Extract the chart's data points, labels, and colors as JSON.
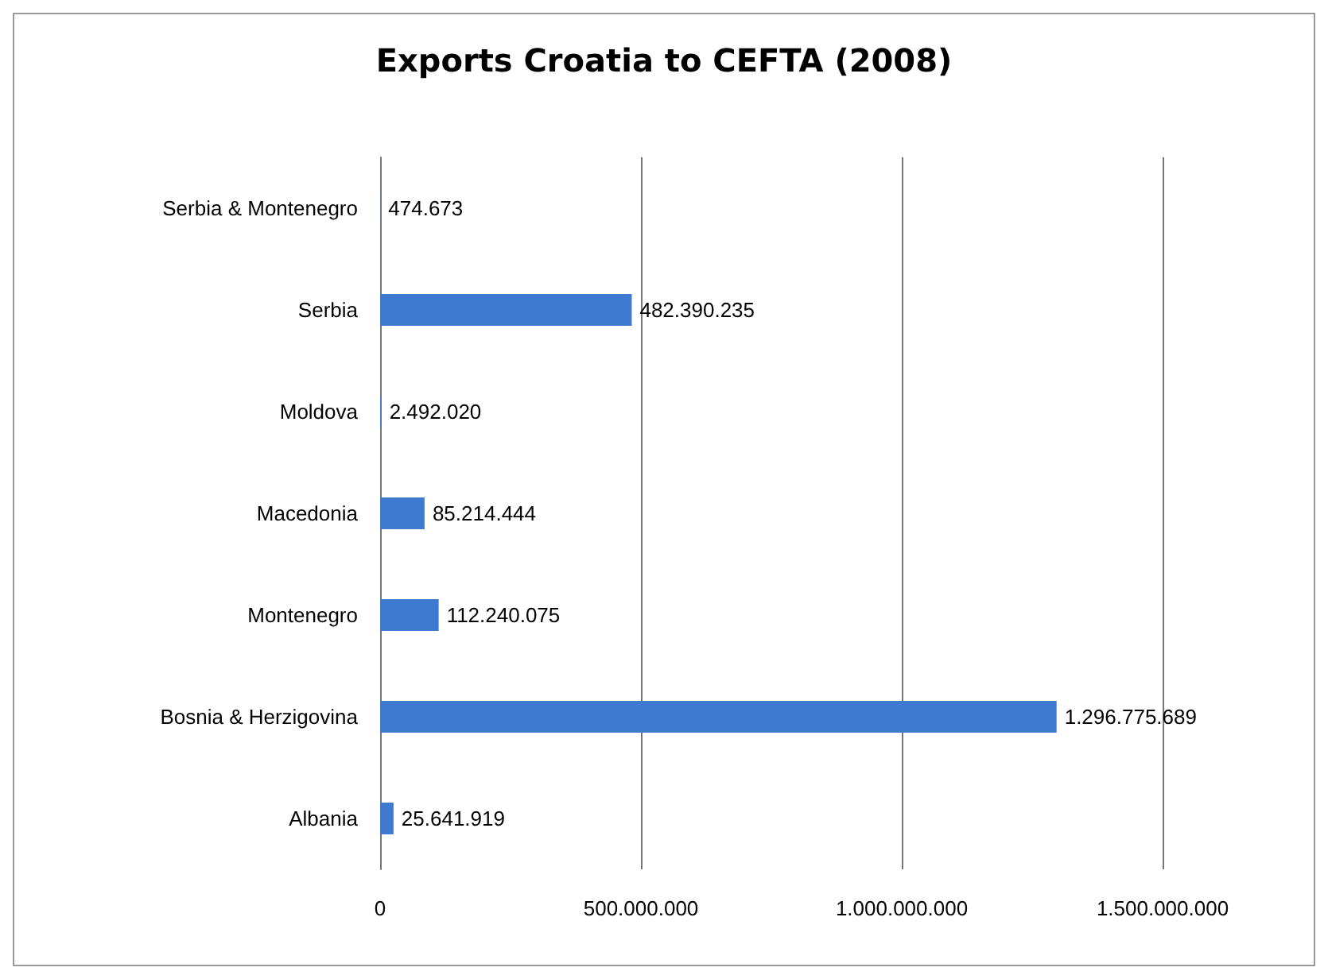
{
  "chart_data": {
    "type": "bar",
    "orientation": "horizontal",
    "title": "Exports Croatia to CEFTA (2008)",
    "categories": [
      "Serbia & Montenegro",
      "Serbia",
      "Moldova",
      "Macedonia",
      "Montenegro",
      "Bosnia & Herzigovina",
      "Albania"
    ],
    "values": [
      474673,
      482390235,
      2492020,
      85214444,
      112240075,
      1296775689,
      25641919
    ],
    "value_labels": [
      "474.673",
      "482.390.235",
      "2.492.020",
      "85.214.444",
      "112.240.075",
      "1.296.775.689",
      "25.641.919"
    ],
    "color": "#3f7ad1",
    "xlim": [
      0,
      1500000000
    ],
    "xticks": [
      0,
      {
        "value": 500000000,
        "label": "500.000.000"
      },
      {
        "value": 1000000000,
        "label": "1.000.000.000"
      },
      {
        "value": 1500000000,
        "label": "1.500.000.000"
      }
    ],
    "grid": "x"
  }
}
